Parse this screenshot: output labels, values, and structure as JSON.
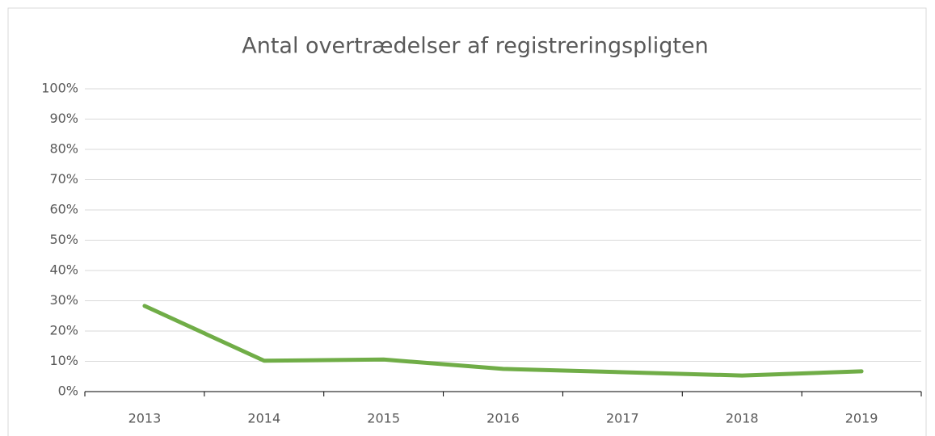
{
  "chart_data": {
    "type": "line",
    "title": "Antal overtrædelser af registreringspligten",
    "categories": [
      "2013",
      "2014",
      "2015",
      "2016",
      "2017",
      "2018",
      "2019"
    ],
    "series": [
      {
        "name": null,
        "color": "#70ad47",
        "values": [
          28.3,
          10.2,
          10.6,
          7.5,
          6.4,
          5.3,
          6.7
        ]
      }
    ],
    "ylim": [
      0,
      100
    ],
    "yticks": [
      {
        "value": 0,
        "label": "0%"
      },
      {
        "value": 10,
        "label": "10%"
      },
      {
        "value": 20,
        "label": "20%"
      },
      {
        "value": 30,
        "label": "30%"
      },
      {
        "value": 40,
        "label": "40%"
      },
      {
        "value": 50,
        "label": "50%"
      },
      {
        "value": 60,
        "label": "60%"
      },
      {
        "value": 70,
        "label": "70%"
      },
      {
        "value": 80,
        "label": "80%"
      },
      {
        "value": 90,
        "label": "90%"
      },
      {
        "value": 100,
        "label": "100%"
      }
    ],
    "grid": true
  }
}
